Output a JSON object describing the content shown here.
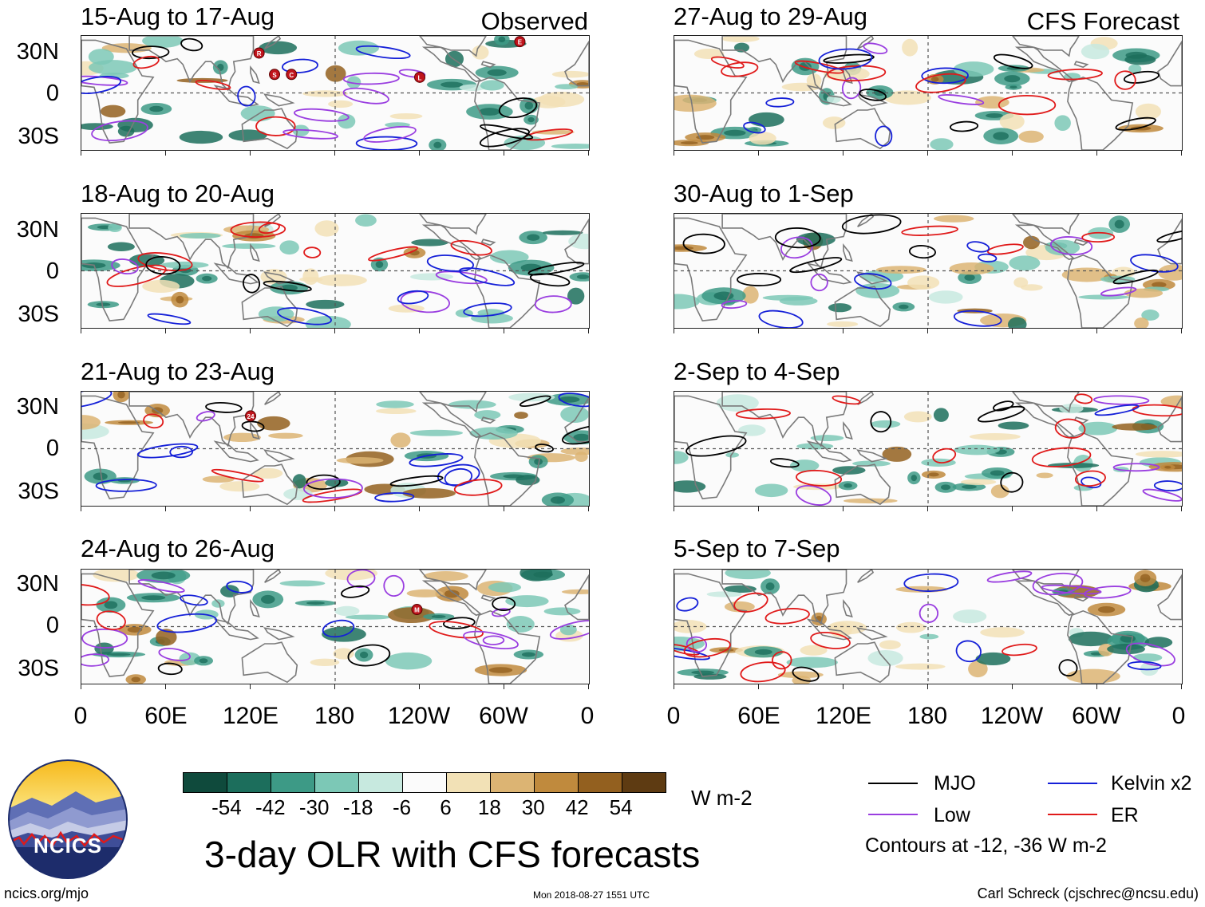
{
  "panels_left": [
    {
      "title": "15-Aug to 17-Aug",
      "tag": "Observed"
    },
    {
      "title": "18-Aug to 20-Aug",
      "tag": ""
    },
    {
      "title": "21-Aug to 23-Aug",
      "tag": ""
    },
    {
      "title": "24-Aug to 26-Aug",
      "tag": ""
    }
  ],
  "panels_right": [
    {
      "title": "27-Aug to 29-Aug",
      "tag": "CFS Forecast"
    },
    {
      "title": "30-Aug to 1-Sep",
      "tag": ""
    },
    {
      "title": "2-Sep to 4-Sep",
      "tag": ""
    },
    {
      "title": "5-Sep to 7-Sep",
      "tag": ""
    }
  ],
  "lat_labels": [
    "30N",
    "0",
    "30S"
  ],
  "lon_labels": [
    "0",
    "60E",
    "120E",
    "180",
    "120W",
    "60W",
    "0"
  ],
  "storm_labels": {
    "p1": [
      "R",
      "S",
      "C",
      "L",
      "E"
    ],
    "p3": [
      "24"
    ],
    "p4": [
      "M"
    ]
  },
  "colorbar": {
    "labels": [
      "-54",
      "-42",
      "-30",
      "-18",
      "-6",
      "6",
      "18",
      "30",
      "42",
      "54"
    ],
    "units": "W m-2",
    "colors": [
      "#0f4a3c",
      "#1c6e5c",
      "#3d9a86",
      "#7cc8b6",
      "#c7e9df",
      "#fbfbfb",
      "#f2e1b6",
      "#dcb473",
      "#c08a3d",
      "#93601f",
      "#5e3b12"
    ]
  },
  "legend": {
    "items": [
      {
        "label": "MJO",
        "color": "#000000"
      },
      {
        "label": "Kelvin x2",
        "color": "#1520d8"
      },
      {
        "label": "Low",
        "color": "#9a3ee0"
      },
      {
        "label": "ER",
        "color": "#e01a1a"
      }
    ],
    "note": "Contours at -12, -36 W m-2"
  },
  "main_title": "3-day OLR with CFS forecasts",
  "logo_text": "NCICS",
  "footer": {
    "left": "ncics.org/mjo",
    "center": "Mon 2018-08-27 1551 UTC",
    "right": "Carl Schreck (cjschrec@ncsu.edu)"
  }
}
